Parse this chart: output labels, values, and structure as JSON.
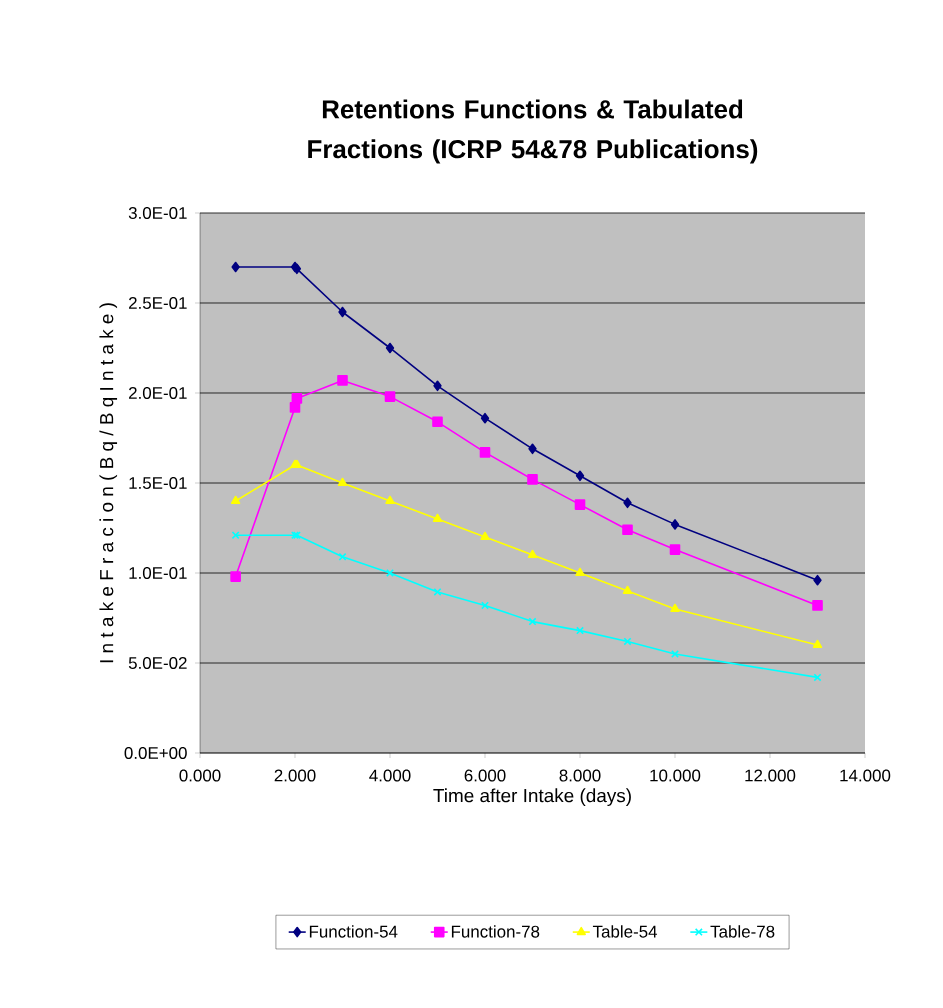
{
  "chart_data": {
    "type": "line",
    "title": "Retentions Functions & Tabulated Fractions (ICRP 54&78 Publications)",
    "xlabel": "Time after Intake (days)",
    "ylabel": "I n t a k e   F r a c i o n   ( B q / B q   I n t a k e )",
    "x": [
      0.75,
      2,
      2.04,
      3,
      4,
      5,
      6,
      7,
      8,
      9,
      10,
      13
    ],
    "series": [
      {
        "name": "Function-54",
        "color": "#000080",
        "marker": "diamond",
        "values": [
          0.27,
          0.27,
          0.269,
          0.245,
          0.225,
          0.204,
          0.186,
          0.169,
          0.154,
          0.139,
          0.127,
          0.096
        ]
      },
      {
        "name": "Function-78",
        "color": "#ff00ff",
        "marker": "square",
        "values": [
          0.098,
          0.192,
          0.197,
          0.207,
          0.198,
          0.184,
          0.167,
          0.152,
          0.138,
          0.124,
          0.113,
          0.082
        ]
      },
      {
        "name": "Table-54",
        "color": "#ffff00",
        "marker": "triangle",
        "values": [
          0.14,
          0.16,
          0.16,
          0.15,
          0.14,
          0.13,
          0.12,
          0.11,
          0.1,
          0.09,
          0.08,
          0.06
        ]
      },
      {
        "name": "Table-78",
        "color": "#00ffff",
        "marker": "cross",
        "values": [
          0.121,
          0.121,
          0.121,
          0.109,
          0.1,
          0.0895,
          0.082,
          0.073,
          0.068,
          0.062,
          0.055,
          0.042
        ]
      }
    ],
    "xlim": [
      0,
      14
    ],
    "xticks": [
      {
        "value": 0,
        "label": "0.000"
      },
      {
        "value": 2,
        "label": "2.000"
      },
      {
        "value": 4,
        "label": "4.000"
      },
      {
        "value": 6,
        "label": "6.000"
      },
      {
        "value": 8,
        "label": "8.000"
      },
      {
        "value": 10,
        "label": "10.000"
      },
      {
        "value": 12,
        "label": "12.000"
      },
      {
        "value": 14,
        "label": "14.000"
      }
    ],
    "ylim": [
      0,
      0.3
    ],
    "yticks": [
      {
        "value": 0,
        "label": "0.0E+00"
      },
      {
        "value": 0.05,
        "label": "5.0E-02"
      },
      {
        "value": 0.1,
        "label": "1.0E-01"
      },
      {
        "value": 0.15,
        "label": "1.5E-01"
      },
      {
        "value": 0.2,
        "label": "2.0E-01"
      },
      {
        "value": 0.25,
        "label": "2.5E-01"
      },
      {
        "value": 0.3,
        "label": "3.0E-01"
      }
    ],
    "grid": "y",
    "legend": "bottom",
    "line_style": "solid"
  }
}
